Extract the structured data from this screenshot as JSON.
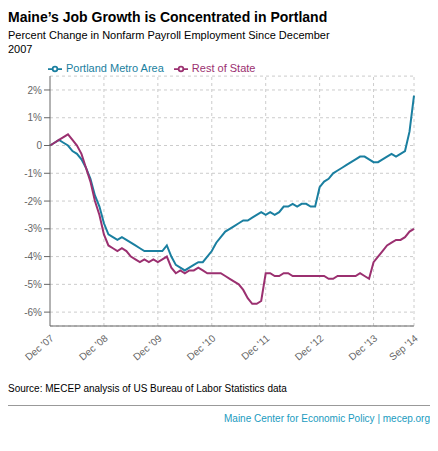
{
  "chart_data": {
    "type": "line",
    "title": "Maine’s Job Growth is Concentrated in Portland",
    "subtitle": "Percent Change in Nonfarm Payroll Employment Since December\n2007",
    "source": "Source: MECEP analysis of US Bureau of Labor Statistics data",
    "footer": "Maine Center for Economic Policy | mecep.org",
    "footer_color": "#1a9bc0",
    "categories": [
      "Dec '07",
      null,
      null,
      null,
      null,
      null,
      null,
      null,
      null,
      null,
      null,
      null,
      "Dec '08",
      null,
      null,
      null,
      null,
      null,
      null,
      null,
      null,
      null,
      null,
      null,
      "Dec '09",
      null,
      null,
      null,
      null,
      null,
      null,
      null,
      null,
      null,
      null,
      null,
      "Dec '10",
      null,
      null,
      null,
      null,
      null,
      null,
      null,
      null,
      null,
      null,
      null,
      "Dec '11",
      null,
      null,
      null,
      null,
      null,
      null,
      null,
      null,
      null,
      null,
      null,
      "Dec '12",
      null,
      null,
      null,
      null,
      null,
      null,
      null,
      null,
      null,
      null,
      null,
      "Dec '13",
      null,
      null,
      null,
      null,
      null,
      null,
      null,
      null,
      "Sep '14"
    ],
    "ylim": [
      -0.065,
      0.025
    ],
    "yticks": [
      {
        "value": -0.06,
        "label": "-6%"
      },
      {
        "value": -0.05,
        "label": "-5%"
      },
      {
        "value": -0.04,
        "label": "-4%"
      },
      {
        "value": -0.03,
        "label": "-3%"
      },
      {
        "value": -0.02,
        "label": "-2%"
      },
      {
        "value": -0.01,
        "label": "-1%"
      },
      0,
      {
        "value": 0.01,
        "label": "1%"
      },
      {
        "value": 0.02,
        "label": "2%"
      }
    ],
    "grid": true,
    "legend": "upper left",
    "series": [
      {
        "name": "Portland Metro Area",
        "color": "#1a7fa0",
        "values": [
          0.0,
          0.001,
          0.002,
          0.001,
          0.0,
          -0.002,
          -0.003,
          -0.005,
          -0.008,
          -0.012,
          -0.018,
          -0.022,
          -0.028,
          -0.032,
          -0.033,
          -0.034,
          -0.033,
          -0.034,
          -0.035,
          -0.036,
          -0.037,
          -0.038,
          -0.038,
          -0.038,
          -0.038,
          -0.038,
          -0.036,
          -0.04,
          -0.043,
          -0.044,
          -0.045,
          -0.044,
          -0.043,
          -0.042,
          -0.042,
          -0.04,
          -0.038,
          -0.035,
          -0.033,
          -0.031,
          -0.03,
          -0.029,
          -0.028,
          -0.027,
          -0.027,
          -0.026,
          -0.025,
          -0.024,
          -0.025,
          -0.024,
          -0.025,
          -0.024,
          -0.022,
          -0.022,
          -0.021,
          -0.022,
          -0.021,
          -0.021,
          -0.022,
          -0.022,
          -0.015,
          -0.013,
          -0.012,
          -0.01,
          -0.009,
          -0.008,
          -0.007,
          -0.006,
          -0.005,
          -0.004,
          -0.004,
          -0.005,
          -0.006,
          -0.006,
          -0.005,
          -0.004,
          -0.003,
          -0.004,
          -0.003,
          -0.002,
          0.005,
          0.018
        ]
      },
      {
        "name": "Rest of State",
        "color": "#9b3070",
        "values": [
          0.0,
          0.001,
          0.002,
          0.003,
          0.004,
          0.002,
          0.0,
          -0.003,
          -0.008,
          -0.013,
          -0.02,
          -0.025,
          -0.032,
          -0.036,
          -0.037,
          -0.038,
          -0.037,
          -0.038,
          -0.04,
          -0.041,
          -0.042,
          -0.041,
          -0.042,
          -0.041,
          -0.042,
          -0.041,
          -0.04,
          -0.044,
          -0.046,
          -0.045,
          -0.046,
          -0.045,
          -0.045,
          -0.044,
          -0.045,
          -0.046,
          -0.046,
          -0.046,
          -0.046,
          -0.047,
          -0.048,
          -0.049,
          -0.05,
          -0.052,
          -0.055,
          -0.057,
          -0.057,
          -0.056,
          -0.046,
          -0.046,
          -0.047,
          -0.047,
          -0.046,
          -0.046,
          -0.047,
          -0.047,
          -0.047,
          -0.047,
          -0.047,
          -0.047,
          -0.047,
          -0.047,
          -0.048,
          -0.048,
          -0.047,
          -0.047,
          -0.047,
          -0.047,
          -0.047,
          -0.046,
          -0.047,
          -0.048,
          -0.042,
          -0.04,
          -0.038,
          -0.036,
          -0.035,
          -0.034,
          -0.034,
          -0.033,
          -0.031,
          -0.03
        ]
      }
    ]
  }
}
